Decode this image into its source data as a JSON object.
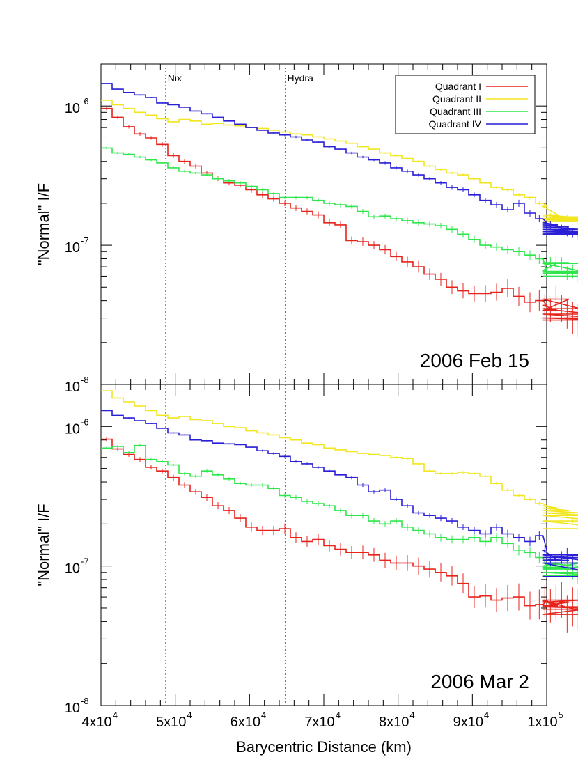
{
  "chart_data": [
    {
      "type": "line",
      "panel": "top",
      "annotation": "2006 Feb 15",
      "ylabel": "\"Normal\" I/F",
      "xlabel": "",
      "yscale": "log",
      "ylim": [
        1e-08,
        2e-06
      ],
      "xlim": [
        40000,
        100000
      ],
      "legend": "top-right",
      "x_start": 40000,
      "x_step": 1500,
      "series": [
        {
          "name": "Quadrant I",
          "color": "#e8231c",
          "values": [
            9.6e-07,
            8.3e-07,
            7.1e-07,
            6.3e-07,
            5.9e-07,
            5.3e-07,
            4.4e-07,
            4e-07,
            3.7e-07,
            3.3e-07,
            3e-07,
            2.8e-07,
            2.7e-07,
            2.5e-07,
            2.3e-07,
            2.15e-07,
            2e-07,
            1.85e-07,
            1.75e-07,
            1.65e-07,
            1.45e-07,
            1.4e-07,
            1.08e-07,
            1.06e-07,
            1e-07,
            9.3e-08,
            8.3e-08,
            7.6e-08,
            7e-08,
            6.2e-08,
            5.7e-08,
            5e-08,
            4.7e-08,
            4.5e-08,
            4.5e-08,
            4.6e-08,
            4.9e-08,
            4.3e-08,
            3.9e-08,
            4e-08,
            3.7e-08,
            3.4e-08,
            4.1e-08,
            3.5e-08,
            3.2e-08,
            3e-08,
            2.9e-08
          ],
          "errors": [
            0.03,
            0.03,
            0.03,
            0.03,
            0.03,
            0.04,
            0.04,
            0.04,
            0.04,
            0.04,
            0.04,
            0.04,
            0.04,
            0.05,
            0.05,
            0.05,
            0.05,
            0.05,
            0.05,
            0.06,
            0.06,
            0.06,
            0.07,
            0.07,
            0.07,
            0.08,
            0.08,
            0.09,
            0.1,
            0.1,
            0.11,
            0.12,
            0.13,
            0.14,
            0.15,
            0.15,
            0.16,
            0.17,
            0.18,
            0.19,
            0.2,
            0.22,
            0.24,
            0.25,
            0.27,
            0.3,
            0.32
          ]
        },
        {
          "name": "Quadrant II",
          "color": "#f2e61e",
          "values": [
            1.1e-06,
            1.02e-06,
            9.6e-07,
            9e-07,
            8.6e-07,
            8.1e-07,
            7.7e-07,
            8e-07,
            7.8e-07,
            7.4e-07,
            7.5e-07,
            7.3e-07,
            7.2e-07,
            7e-07,
            6.9e-07,
            6.7e-07,
            6.5e-07,
            6.3e-07,
            6.2e-07,
            6e-07,
            5.8e-07,
            5.6e-07,
            5.4e-07,
            5.1e-07,
            4.9e-07,
            4.6e-07,
            4.4e-07,
            4.2e-07,
            4e-07,
            3.7e-07,
            3.5e-07,
            3.3e-07,
            3.2e-07,
            3e-07,
            2.8e-07,
            2.6e-07,
            2.5e-07,
            2.3e-07,
            2.2e-07,
            2e-07,
            1.9e-07,
            1.65e-07,
            1.6e-07,
            1.55e-07,
            1.6e-07,
            1.52e-07,
            1.48e-07
          ],
          "errors": [
            0.01,
            0.01,
            0.01,
            0.01,
            0.01,
            0.01,
            0.01,
            0.01,
            0.01,
            0.01,
            0.01,
            0.01,
            0.01,
            0.01,
            0.01,
            0.01,
            0.01,
            0.01,
            0.01,
            0.01,
            0.01,
            0.01,
            0.01,
            0.01,
            0.01,
            0.01,
            0.02,
            0.02,
            0.02,
            0.02,
            0.02,
            0.02,
            0.02,
            0.02,
            0.02,
            0.02,
            0.03,
            0.03,
            0.03,
            0.03,
            0.03,
            0.03,
            0.03,
            0.03,
            0.04,
            0.04,
            0.04
          ]
        },
        {
          "name": "Quadrant III",
          "color": "#2ee64b",
          "values": [
            5e-07,
            4.6e-07,
            4.5e-07,
            4.3e-07,
            4.1e-07,
            3.9e-07,
            3.6e-07,
            3.4e-07,
            3.3e-07,
            3.2e-07,
            3e-07,
            2.9e-07,
            2.8e-07,
            2.65e-07,
            2.5e-07,
            2.35e-07,
            2.2e-07,
            2.2e-07,
            2.2e-07,
            2.1e-07,
            2e-07,
            1.95e-07,
            1.9e-07,
            1.75e-07,
            1.6e-07,
            1.62e-07,
            1.55e-07,
            1.5e-07,
            1.45e-07,
            1.42e-07,
            1.38e-07,
            1.3e-07,
            1.2e-07,
            1.1e-07,
            1e-07,
            9.7e-08,
            9.3e-08,
            9e-08,
            8.5e-08,
            8e-08,
            6.6e-08,
            7.5e-08,
            7.5e-08,
            7.4e-08,
            6.3e-08,
            6.5e-08,
            6e-08
          ],
          "errors": [
            0.02,
            0.02,
            0.02,
            0.02,
            0.02,
            0.02,
            0.02,
            0.02,
            0.02,
            0.02,
            0.03,
            0.03,
            0.03,
            0.03,
            0.03,
            0.03,
            0.03,
            0.03,
            0.03,
            0.03,
            0.04,
            0.04,
            0.04,
            0.04,
            0.04,
            0.04,
            0.04,
            0.05,
            0.05,
            0.05,
            0.05,
            0.06,
            0.06,
            0.06,
            0.07,
            0.07,
            0.07,
            0.08,
            0.08,
            0.09,
            0.1,
            0.1,
            0.1,
            0.11,
            0.12,
            0.12,
            0.13
          ]
        },
        {
          "name": "Quadrant IV",
          "color": "#2a1fd6",
          "values": [
            1.45e-06,
            1.32e-06,
            1.25e-06,
            1.2e-06,
            1.15e-06,
            1.05e-06,
            1.02e-06,
            9.8e-07,
            9.2e-07,
            8.8e-07,
            8.3e-07,
            7.8e-07,
            7.4e-07,
            7e-07,
            6.7e-07,
            6.4e-07,
            6.2e-07,
            6e-07,
            5.7e-07,
            5.5e-07,
            5.1e-07,
            4.9e-07,
            4.6e-07,
            4.3e-07,
            4.1e-07,
            3.9e-07,
            3.6e-07,
            3.4e-07,
            3.2e-07,
            3e-07,
            2.8e-07,
            2.6e-07,
            2.5e-07,
            2.3e-07,
            2.1e-07,
            1.95e-07,
            1.8e-07,
            2e-07,
            1.7e-07,
            1.55e-07,
            1.45e-07,
            1.4e-07,
            1.35e-07,
            1.3e-07,
            1.25e-07,
            1.22e-07,
            1.2e-07
          ],
          "errors": [
            0.01,
            0.01,
            0.01,
            0.01,
            0.01,
            0.01,
            0.01,
            0.01,
            0.01,
            0.01,
            0.01,
            0.01,
            0.01,
            0.01,
            0.01,
            0.02,
            0.02,
            0.02,
            0.02,
            0.02,
            0.02,
            0.02,
            0.02,
            0.02,
            0.02,
            0.03,
            0.03,
            0.03,
            0.03,
            0.03,
            0.03,
            0.04,
            0.04,
            0.04,
            0.04,
            0.05,
            0.05,
            0.06,
            0.06,
            0.06,
            0.07,
            0.07,
            0.07,
            0.08,
            0.08,
            0.08,
            0.09
          ]
        }
      ]
    },
    {
      "type": "line",
      "panel": "bottom",
      "annotation": "2006 Mar 2",
      "ylabel": "\"Normal\" I/F",
      "xlabel": "Barycentric Distance (km)",
      "yscale": "log",
      "ylim": [
        1e-08,
        2e-06
      ],
      "xlim": [
        40000,
        100000
      ],
      "x_start": 40000,
      "x_step": 1500,
      "series": [
        {
          "name": "Quadrant I",
          "color": "#e8231c",
          "values": [
            8.1e-07,
            6.9e-07,
            6.3e-07,
            5.8e-07,
            5.1e-07,
            4.8e-07,
            4.3e-07,
            3.8e-07,
            3.4e-07,
            3.1e-07,
            2.7e-07,
            2.5e-07,
            2.2e-07,
            1.9e-07,
            1.8e-07,
            1.8e-07,
            1.85e-07,
            1.6e-07,
            1.5e-07,
            1.55e-07,
            1.4e-07,
            1.32e-07,
            1.25e-07,
            1.25e-07,
            1.2e-07,
            1.1e-07,
            1.05e-07,
            1.05e-07,
            1e-07,
            9.5e-08,
            9e-08,
            8.5e-08,
            7.5e-08,
            6e-08,
            6.1e-08,
            5.7e-08,
            5.9e-08,
            6e-08,
            5.2e-08,
            5.3e-08,
            5.6e-08,
            5.2e-08,
            5.5e-08,
            5.7e-08,
            4.5e-08,
            5.1e-08,
            4.9e-08
          ],
          "errors": [
            0.03,
            0.03,
            0.04,
            0.04,
            0.04,
            0.04,
            0.05,
            0.05,
            0.05,
            0.06,
            0.06,
            0.06,
            0.07,
            0.08,
            0.08,
            0.08,
            0.09,
            0.09,
            0.09,
            0.1,
            0.1,
            0.11,
            0.11,
            0.12,
            0.12,
            0.13,
            0.13,
            0.14,
            0.15,
            0.15,
            0.16,
            0.17,
            0.18,
            0.2,
            0.21,
            0.22,
            0.24,
            0.25,
            0.26,
            0.28,
            0.3,
            0.32,
            0.33,
            0.35,
            0.36,
            0.38,
            0.4
          ]
        },
        {
          "name": "Quadrant II",
          "color": "#f2e61e",
          "values": [
            1.8e-06,
            1.6e-06,
            1.5e-06,
            1.4e-06,
            1.3e-06,
            1.2e-06,
            1.15e-06,
            1.18e-06,
            1.12e-06,
            1.1e-06,
            1.05e-06,
            1e-06,
            9.8e-07,
            9.3e-07,
            9e-07,
            8.7e-07,
            8.3e-07,
            8e-07,
            7.6e-07,
            7.4e-07,
            7e-07,
            6.8e-07,
            6.6e-07,
            6.4e-07,
            6.3e-07,
            6.2e-07,
            6e-07,
            5.9e-07,
            5.4e-07,
            4.8e-07,
            4.6e-07,
            4.6e-07,
            4.7e-07,
            4.6e-07,
            4.4e-07,
            3.9e-07,
            3.5e-07,
            3.2e-07,
            3e-07,
            2.8e-07,
            2.7e-07,
            2.6e-07,
            2.5e-07,
            2.4e-07,
            2.3e-07,
            2.1e-07,
            1.85e-07
          ],
          "errors": [
            0.01,
            0.01,
            0.01,
            0.01,
            0.01,
            0.01,
            0.01,
            0.01,
            0.01,
            0.01,
            0.01,
            0.01,
            0.01,
            0.01,
            0.01,
            0.01,
            0.01,
            0.01,
            0.01,
            0.01,
            0.01,
            0.01,
            0.01,
            0.01,
            0.01,
            0.01,
            0.02,
            0.02,
            0.02,
            0.02,
            0.02,
            0.02,
            0.02,
            0.02,
            0.02,
            0.03,
            0.03,
            0.03,
            0.03,
            0.03,
            0.03,
            0.03,
            0.04,
            0.04,
            0.04,
            0.04,
            0.04
          ]
        },
        {
          "name": "Quadrant III",
          "color": "#2ee64b",
          "values": [
            7e-07,
            7.2e-07,
            6.5e-07,
            7.3e-07,
            5.8e-07,
            5.6e-07,
            5.3e-07,
            4.6e-07,
            4.4e-07,
            4.8e-07,
            4.5e-07,
            4.2e-07,
            3.9e-07,
            3.8e-07,
            3.8e-07,
            3.6e-07,
            3.2e-07,
            3.1e-07,
            2.9e-07,
            2.8e-07,
            2.7e-07,
            2.5e-07,
            2.3e-07,
            2.3e-07,
            2.1e-07,
            2e-07,
            2.1e-07,
            1.9e-07,
            1.8e-07,
            1.7e-07,
            1.6e-07,
            1.55e-07,
            1.55e-07,
            1.6e-07,
            1.5e-07,
            1.6e-07,
            1.45e-07,
            1.3e-07,
            1.25e-07,
            1.15e-07,
            1e-07,
            1.05e-07,
            9.5e-08,
            1.05e-07,
            9.8e-08,
            9e-08,
            8.5e-08
          ],
          "errors": [
            0.02,
            0.02,
            0.02,
            0.02,
            0.02,
            0.02,
            0.02,
            0.03,
            0.03,
            0.03,
            0.03,
            0.03,
            0.03,
            0.03,
            0.03,
            0.03,
            0.04,
            0.04,
            0.04,
            0.04,
            0.04,
            0.04,
            0.05,
            0.05,
            0.05,
            0.05,
            0.05,
            0.06,
            0.06,
            0.06,
            0.07,
            0.07,
            0.07,
            0.07,
            0.08,
            0.08,
            0.08,
            0.09,
            0.09,
            0.1,
            0.1,
            0.11,
            0.12,
            0.12,
            0.13,
            0.13,
            0.14
          ]
        },
        {
          "name": "Quadrant IV",
          "color": "#2a1fd6",
          "values": [
            1.3e-06,
            1.2e-06,
            1.15e-06,
            1.1e-06,
            1.05e-06,
            9.7e-07,
            9e-07,
            8.7e-07,
            8e-07,
            7.9e-07,
            7.6e-07,
            7.5e-07,
            7.4e-07,
            7.1e-07,
            6.7e-07,
            6.4e-07,
            6.1e-07,
            5.6e-07,
            5.4e-07,
            5.1e-07,
            4.8e-07,
            4.5e-07,
            4.3e-07,
            3.8e-07,
            3.4e-07,
            3.5e-07,
            3e-07,
            2.7e-07,
            2.4e-07,
            2.3e-07,
            2.2e-07,
            2.1e-07,
            1.9e-07,
            1.8e-07,
            1.7e-07,
            1.9e-07,
            1.7e-07,
            1.6e-07,
            1.5e-07,
            1.65e-07,
            1.3e-07,
            1.1e-07,
            1.1e-07,
            1.15e-07,
            1.2e-07,
            1.05e-07,
            8.4e-08
          ],
          "errors": [
            0.01,
            0.01,
            0.01,
            0.01,
            0.01,
            0.01,
            0.01,
            0.01,
            0.01,
            0.01,
            0.01,
            0.01,
            0.01,
            0.01,
            0.02,
            0.02,
            0.02,
            0.02,
            0.02,
            0.02,
            0.02,
            0.02,
            0.03,
            0.03,
            0.03,
            0.03,
            0.03,
            0.04,
            0.04,
            0.04,
            0.05,
            0.05,
            0.05,
            0.06,
            0.06,
            0.06,
            0.07,
            0.07,
            0.08,
            0.08,
            0.09,
            0.1,
            0.1,
            0.11,
            0.12,
            0.12,
            0.13
          ]
        }
      ]
    }
  ],
  "moons": [
    {
      "name": "Nix",
      "x": 48700
    },
    {
      "name": "Hydra",
      "x": 64800
    }
  ],
  "x_tick_labels": [
    {
      "base": "4x10",
      "exp": "4",
      "value": 40000
    },
    {
      "base": "5x10",
      "exp": "4",
      "value": 50000
    },
    {
      "base": "6x10",
      "exp": "4",
      "value": 60000
    },
    {
      "base": "7x10",
      "exp": "4",
      "value": 70000
    },
    {
      "base": "8x10",
      "exp": "4",
      "value": 80000
    },
    {
      "base": "9x10",
      "exp": "4",
      "value": 90000
    },
    {
      "base": "1x10",
      "exp": "5",
      "value": 100000
    }
  ],
  "y_tick_labels": [
    {
      "base": "10",
      "exp": "-6",
      "value": 1e-06
    },
    {
      "base": "10",
      "exp": "-7",
      "value": 1e-07
    },
    {
      "base": "10",
      "exp": "-8",
      "value": 1e-08
    }
  ]
}
